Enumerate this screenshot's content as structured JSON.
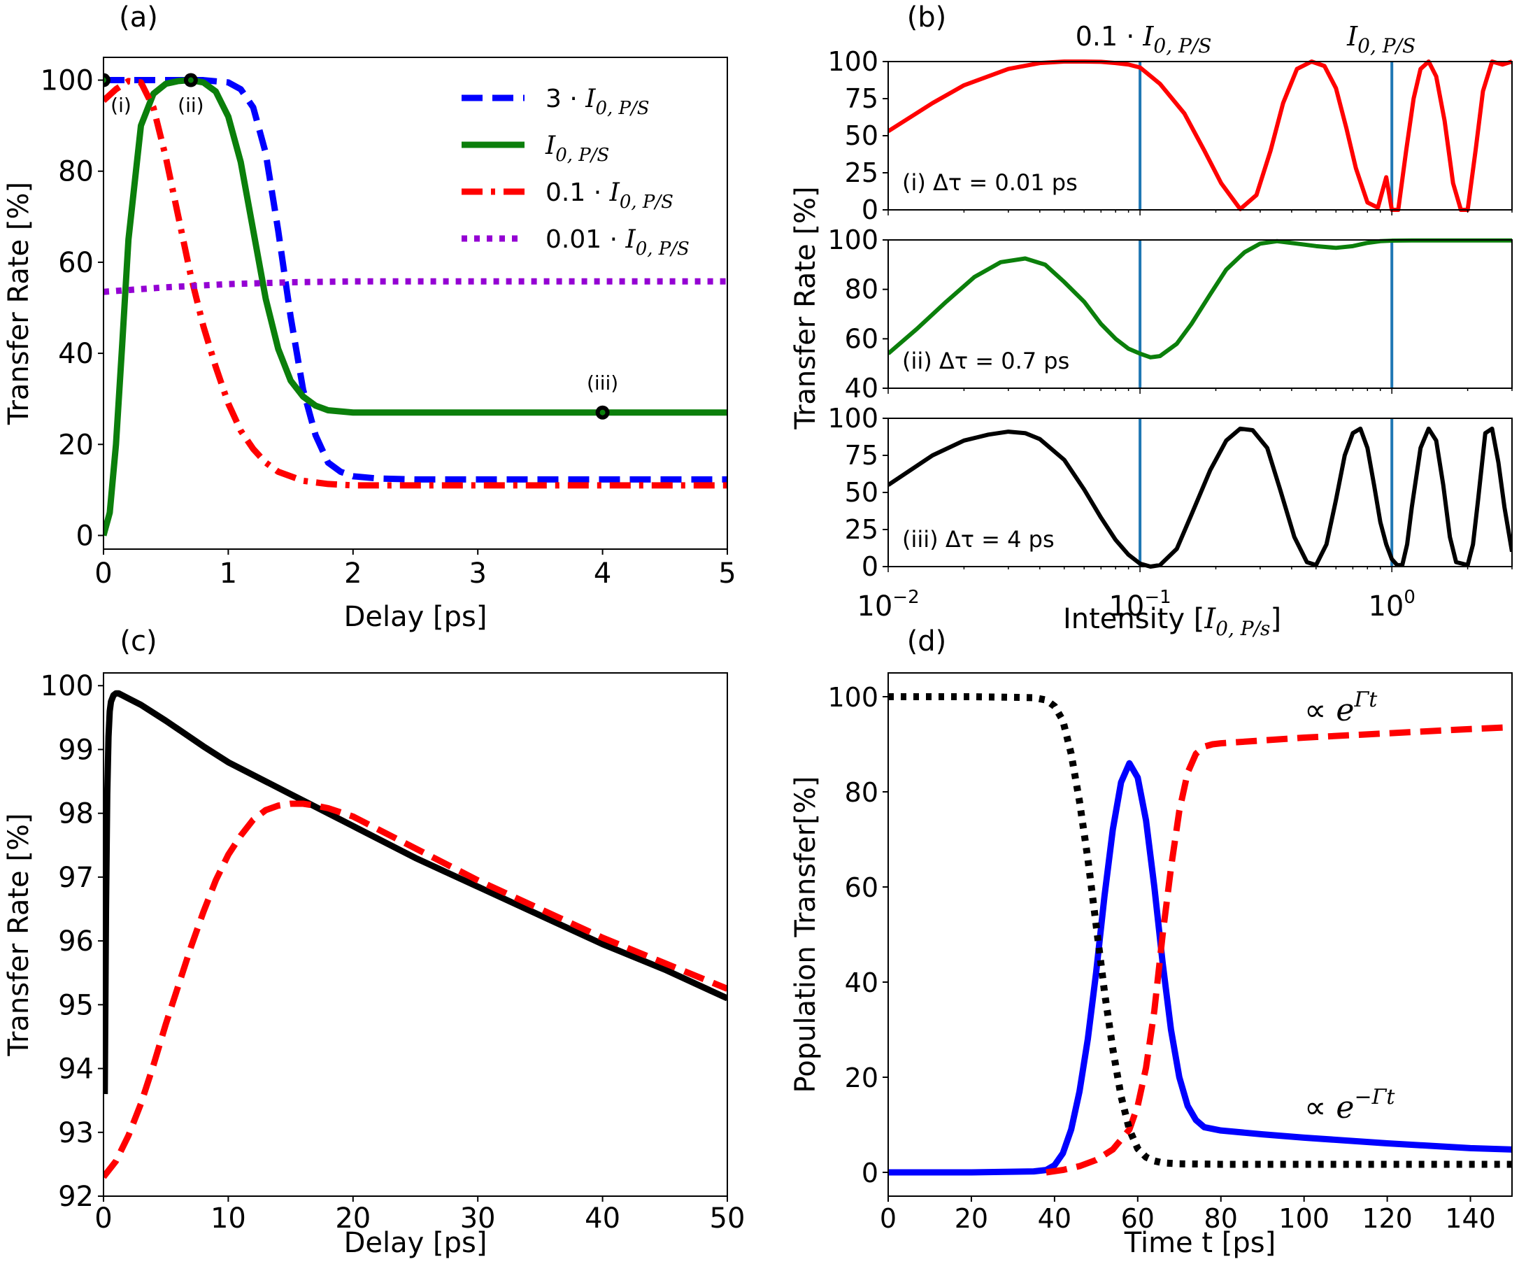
{
  "figure_title": "",
  "colors": {
    "blue": "#0000ff",
    "green": "#0b7f0b",
    "red": "#ff0000",
    "purple": "#9400d3",
    "black": "#000000",
    "vline": "#1f77b4"
  },
  "chart_data": [
    {
      "id": "a",
      "panel_label": "(a)",
      "type": "line",
      "xlabel": "Delay [ps]",
      "ylabel": "Transfer Rate [%]",
      "xlim": [
        0,
        5
      ],
      "ylim": [
        -3,
        105
      ],
      "xticks": [
        0,
        1,
        2,
        3,
        4,
        5
      ],
      "xtick_labels": [
        "0",
        "1",
        "2",
        "3",
        "4",
        "5"
      ],
      "yticks": [
        0,
        20,
        40,
        60,
        80,
        100
      ],
      "ytick_labels": [
        "0",
        "20",
        "40",
        "60",
        "80",
        "100"
      ],
      "legend_position": "top-right",
      "series": [
        {
          "name": "3 · I0,P/S",
          "legend_main": "3 · ",
          "legend_sym": "I",
          "legend_sub": "0, P/S",
          "color": "blue",
          "style": "dashed",
          "x": [
            0,
            0.2,
            0.4,
            0.6,
            0.8,
            1.0,
            1.1,
            1.2,
            1.3,
            1.4,
            1.5,
            1.6,
            1.7,
            1.8,
            1.9,
            2.0,
            2.2,
            2.5,
            3,
            4,
            5
          ],
          "y": [
            100,
            100,
            100,
            100,
            100,
            99.5,
            98,
            94,
            84,
            67,
            48,
            32,
            22,
            16,
            14,
            13,
            12.5,
            12.3,
            12.3,
            12.3,
            12.3
          ]
        },
        {
          "name": "I0,P/S",
          "legend_main": "",
          "legend_sym": "I",
          "legend_sub": "0, P/S",
          "color": "green",
          "style": "solid",
          "x": [
            0,
            0.05,
            0.1,
            0.15,
            0.2,
            0.3,
            0.4,
            0.5,
            0.6,
            0.7,
            0.8,
            0.9,
            1.0,
            1.1,
            1.2,
            1.3,
            1.4,
            1.5,
            1.6,
            1.7,
            1.8,
            2.0,
            2.3,
            3,
            4,
            5
          ],
          "y": [
            0,
            5,
            20,
            42,
            65,
            90,
            97,
            99.2,
            99.8,
            100,
            99.5,
            97.5,
            92,
            82,
            67,
            52,
            41,
            34,
            30.5,
            28.5,
            27.5,
            27,
            27,
            27,
            27,
            27
          ]
        },
        {
          "name": "0.1 · I0,P/S",
          "legend_main": "0.1 · ",
          "legend_sym": "I",
          "legend_sub": "0, P/S",
          "color": "red",
          "style": "dashdot",
          "x": [
            0,
            0.1,
            0.2,
            0.3,
            0.4,
            0.5,
            0.6,
            0.7,
            0.8,
            0.9,
            1.0,
            1.1,
            1.2,
            1.3,
            1.4,
            1.6,
            1.8,
            2.0,
            2.5,
            3,
            4,
            5
          ],
          "y": [
            95.5,
            98,
            99.8,
            99.5,
            94,
            83,
            70,
            57,
            46,
            37,
            29,
            23,
            19,
            16,
            14,
            12,
            11.3,
            11,
            11,
            11,
            11,
            11
          ]
        },
        {
          "name": "0.01 · I0,P/S",
          "legend_main": "0.01 · ",
          "legend_sym": "I",
          "legend_sub": "0, P/S",
          "color": "purple",
          "style": "dotted",
          "x": [
            0,
            0.5,
            1.0,
            1.5,
            2.0,
            3,
            4,
            5
          ],
          "y": [
            53.5,
            54.5,
            55.2,
            55.6,
            55.8,
            55.8,
            55.8,
            55.8
          ]
        }
      ],
      "markers": [
        {
          "label": "(i)",
          "x": 0,
          "y": 100
        },
        {
          "label": "(ii)",
          "x": 0.7,
          "y": 100
        },
        {
          "label": "(iii)",
          "x": 4,
          "y": 27
        }
      ]
    },
    {
      "id": "b",
      "panel_label": "(b)",
      "type": "line",
      "xscale": "log",
      "xlabel": "Intensity [I0,P/s]",
      "xlabel_main": "Intensity [",
      "xlabel_sym": "I",
      "xlabel_sub": "0, P/s",
      "xlabel_end": "]",
      "ylabel": "Transfer Rate [%]",
      "xlim": [
        0.01,
        3
      ],
      "xtick_labels": [
        {
          "base": "10",
          "exp": "−2"
        },
        {
          "base": "10",
          "exp": "−1"
        },
        {
          "base": "10",
          "exp": "0"
        }
      ],
      "xticks": [
        0.01,
        0.1,
        1
      ],
      "vlines": [
        0.1,
        1
      ],
      "top_labels": [
        {
          "main": "0.1 · ",
          "sym": "I",
          "sub": "0, P/S"
        },
        {
          "main": "",
          "sym": "I",
          "sub": "0, P/S"
        }
      ],
      "subplots": [
        {
          "label": "(i) Δτ = 0.01 ps",
          "color": "red",
          "ylim": [
            0,
            100
          ],
          "yticks": [
            0,
            25,
            50,
            75,
            100
          ],
          "ytick_labels": [
            "0",
            "25",
            "50",
            "75",
            "100"
          ],
          "x": [
            0.01,
            0.015,
            0.02,
            0.03,
            0.04,
            0.05,
            0.06,
            0.07,
            0.08,
            0.09,
            0.1,
            0.12,
            0.15,
            0.18,
            0.21,
            0.25,
            0.29,
            0.33,
            0.37,
            0.42,
            0.48,
            0.54,
            0.6,
            0.66,
            0.72,
            0.8,
            0.88,
            0.95,
            1.0,
            1.06,
            1.14,
            1.22,
            1.3,
            1.4,
            1.5,
            1.62,
            1.75,
            1.88,
            2.0,
            2.15,
            2.3,
            2.5,
            2.75,
            3.0
          ],
          "y": [
            53,
            72,
            84,
            95,
            99,
            100,
            100,
            99.8,
            99,
            98,
            96,
            85,
            65,
            40,
            18,
            0.5,
            10,
            40,
            72,
            95,
            100,
            97,
            82,
            55,
            28,
            5,
            1.5,
            22,
            0,
            0,
            40,
            75,
            95,
            100,
            90,
            60,
            18,
            0,
            0,
            40,
            80,
            100,
            98,
            100
          ]
        },
        {
          "label": "(ii) Δτ = 0.7 ps",
          "color": "green",
          "ylim": [
            40,
            100
          ],
          "yticks": [
            40,
            60,
            80,
            100
          ],
          "ytick_labels": [
            "40",
            "60",
            "80",
            "100"
          ],
          "x": [
            0.01,
            0.013,
            0.017,
            0.022,
            0.028,
            0.035,
            0.042,
            0.05,
            0.06,
            0.07,
            0.08,
            0.09,
            0.1,
            0.11,
            0.12,
            0.14,
            0.16,
            0.19,
            0.22,
            0.26,
            0.3,
            0.35,
            0.42,
            0.5,
            0.6,
            0.7,
            0.8,
            0.9,
            1.0,
            1.2,
            1.5,
            2.0,
            2.5,
            3.0
          ],
          "y": [
            54,
            64,
            75,
            85,
            91,
            92.5,
            90,
            83,
            75,
            66,
            60,
            56,
            54,
            52.5,
            53,
            58,
            66,
            78,
            88,
            95,
            98.5,
            99.5,
            98.5,
            97.5,
            96.8,
            97.5,
            98.8,
            99.5,
            99.7,
            99.8,
            99.8,
            99.8,
            99.8,
            99.8
          ]
        },
        {
          "label": "(iii) Δτ = 4 ps",
          "color": "black",
          "ylim": [
            0,
            100
          ],
          "yticks": [
            0,
            25,
            50,
            75,
            100
          ],
          "ytick_labels": [
            "0",
            "25",
            "50",
            "75",
            "100"
          ],
          "x": [
            0.01,
            0.015,
            0.02,
            0.025,
            0.03,
            0.035,
            0.04,
            0.05,
            0.06,
            0.07,
            0.08,
            0.09,
            0.1,
            0.11,
            0.12,
            0.14,
            0.16,
            0.19,
            0.22,
            0.25,
            0.28,
            0.32,
            0.36,
            0.41,
            0.46,
            0.5,
            0.55,
            0.6,
            0.65,
            0.7,
            0.75,
            0.8,
            0.85,
            0.9,
            0.95,
            1.0,
            1.05,
            1.1,
            1.15,
            1.2,
            1.3,
            1.4,
            1.5,
            1.6,
            1.7,
            1.8,
            1.9,
            2.0,
            2.1,
            2.2,
            2.35,
            2.5,
            2.65,
            2.8,
            3.0
          ],
          "y": [
            55,
            75,
            85,
            89,
            91,
            90,
            86,
            72,
            52,
            33,
            18,
            8,
            2,
            0,
            1,
            12,
            35,
            65,
            85,
            93,
            92,
            80,
            52,
            20,
            3,
            1,
            15,
            45,
            75,
            90,
            93,
            80,
            55,
            30,
            15,
            5,
            1,
            1,
            15,
            40,
            80,
            93,
            85,
            55,
            20,
            3,
            2,
            1,
            15,
            45,
            90,
            93,
            70,
            40,
            10
          ]
        }
      ]
    },
    {
      "id": "c",
      "panel_label": "(c)",
      "type": "line",
      "xlabel": "Delay [ps]",
      "ylabel": "Transfer Rate [%]",
      "xlim": [
        0,
        50
      ],
      "ylim": [
        92,
        100.2
      ],
      "xticks": [
        0,
        10,
        20,
        30,
        40,
        50
      ],
      "xtick_labels": [
        "0",
        "10",
        "20",
        "30",
        "40",
        "50"
      ],
      "yticks": [
        92,
        93,
        94,
        95,
        96,
        97,
        98,
        99,
        100
      ],
      "ytick_labels": [
        "92",
        "93",
        "94",
        "95",
        "96",
        "97",
        "98",
        "99",
        "100"
      ],
      "series": [
        {
          "name": "black",
          "color": "black",
          "style": "solid",
          "x": [
            0.1,
            0.2,
            0.3,
            0.4,
            0.5,
            0.6,
            0.8,
            1.0,
            1.2,
            1.5,
            2,
            3,
            5,
            8,
            10,
            15,
            20,
            25,
            30,
            35,
            40,
            45,
            50
          ],
          "y": [
            93.6,
            96.5,
            98.3,
            99.2,
            99.6,
            99.75,
            99.85,
            99.88,
            99.88,
            99.85,
            99.8,
            99.7,
            99.45,
            99.05,
            98.8,
            98.3,
            97.8,
            97.3,
            96.85,
            96.4,
            95.95,
            95.55,
            95.1
          ]
        },
        {
          "name": "red",
          "color": "red",
          "style": "dashed",
          "x": [
            0,
            1,
            2,
            3,
            4,
            5,
            6,
            7,
            8,
            9,
            10,
            11,
            12,
            13,
            14,
            15,
            16,
            17,
            18,
            20,
            25,
            30,
            35,
            40,
            45,
            50
          ],
          "y": [
            92.3,
            92.55,
            92.95,
            93.45,
            94.05,
            94.7,
            95.3,
            95.9,
            96.45,
            96.95,
            97.35,
            97.65,
            97.9,
            98.05,
            98.12,
            98.15,
            98.15,
            98.12,
            98.08,
            97.95,
            97.45,
            96.95,
            96.5,
            96.05,
            95.65,
            95.25
          ]
        }
      ]
    },
    {
      "id": "d",
      "panel_label": "(d)",
      "type": "line",
      "xlabel": "Time t [ps]",
      "ylabel": "Population Transfer[%]",
      "xlim": [
        0,
        150
      ],
      "ylim": [
        -5,
        105
      ],
      "xticks": [
        0,
        20,
        40,
        60,
        80,
        100,
        120,
        140
      ],
      "xtick_labels": [
        "0",
        "20",
        "40",
        "60",
        "80",
        "100",
        "120",
        "140"
      ],
      "yticks": [
        0,
        20,
        40,
        60,
        80,
        100
      ],
      "ytick_labels": [
        "0",
        "20",
        "40",
        "60",
        "80",
        "100"
      ],
      "annotations": [
        {
          "prefix": "∝ ",
          "base": "e",
          "exp": "Γt",
          "position": "top-right"
        },
        {
          "prefix": "∝ ",
          "base": "e",
          "exp": "−Γt",
          "position": "bottom-right"
        }
      ],
      "series": [
        {
          "name": "blue",
          "color": "blue",
          "style": "solid",
          "x": [
            0,
            20,
            35,
            38,
            40,
            42,
            44,
            46,
            48,
            50,
            52,
            54,
            56,
            58,
            60,
            62,
            64,
            66,
            68,
            70,
            72,
            74,
            76,
            80,
            90,
            100,
            120,
            140,
            150
          ],
          "y": [
            0,
            0,
            0.2,
            0.5,
            1.5,
            4,
            9,
            17,
            28,
            42,
            58,
            72,
            82,
            86,
            83,
            74,
            60,
            44,
            30,
            20,
            14,
            11,
            9.5,
            8.8,
            8,
            7.3,
            6.1,
            5.1,
            4.8
          ]
        },
        {
          "name": "red",
          "color": "red",
          "style": "dashed",
          "x": [
            38,
            42,
            46,
            50,
            54,
            58,
            60,
            62,
            64,
            66,
            68,
            70,
            72,
            74,
            76,
            78,
            80,
            90,
            100,
            120,
            140,
            150
          ],
          "y": [
            0,
            0.5,
            1.3,
            2.6,
            4.8,
            9,
            14,
            22,
            34,
            50,
            64,
            76,
            84,
            88,
            89.5,
            90,
            90.2,
            90.8,
            91.4,
            92.3,
            93.2,
            93.6
          ]
        },
        {
          "name": "black",
          "color": "black",
          "style": "dotted",
          "x": [
            0,
            20,
            35,
            38,
            40,
            42,
            44,
            46,
            48,
            50,
            52,
            54,
            56,
            58,
            60,
            62,
            64,
            66,
            70,
            80,
            100,
            150
          ],
          "y": [
            100,
            100,
            99.8,
            99.3,
            98,
            95,
            88,
            78,
            66,
            52,
            38,
            26,
            16,
            9,
            5,
            3.2,
            2.4,
            2,
            1.8,
            1.7,
            1.7,
            1.7
          ]
        }
      ]
    }
  ]
}
